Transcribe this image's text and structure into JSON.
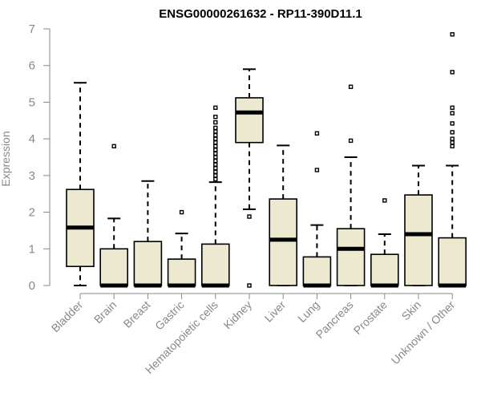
{
  "chart_data": {
    "type": "boxplot",
    "title": "ENSG00000261632 - RP11-390D11.1",
    "ylabel": "Expression",
    "xlabel": "",
    "ylim": [
      0,
      7
    ],
    "yticks": [
      "0",
      "1",
      "2",
      "3",
      "4",
      "5",
      "6",
      "7"
    ],
    "box_fill": "#ede8d0",
    "median_color": "#000000",
    "categories": [
      "Bladder",
      "Brain",
      "Breast",
      "Gastric",
      "Hematopoietic cells",
      "Kidney",
      "Liver",
      "Lung",
      "Pancreas",
      "Prostate",
      "Skin",
      "Unknown / Other"
    ],
    "boxes": [
      {
        "label": "Bladder",
        "min": 0.0,
        "q1": 0.52,
        "median": 1.58,
        "q3": 2.62,
        "max": 5.53,
        "outliers": []
      },
      {
        "label": "Brain",
        "min": 0.0,
        "q1": 0.0,
        "median": 0.0,
        "q3": 1.0,
        "max": 1.83,
        "outliers": [
          3.8
        ]
      },
      {
        "label": "Breast",
        "min": 0.0,
        "q1": 0.0,
        "median": 0.0,
        "q3": 1.2,
        "max": 2.85,
        "outliers": []
      },
      {
        "label": "Gastric",
        "min": 0.0,
        "q1": 0.0,
        "median": 0.0,
        "q3": 0.72,
        "max": 1.42,
        "outliers": [
          2.0
        ]
      },
      {
        "label": "Hematopoietic cells",
        "min": 0.0,
        "q1": 0.0,
        "median": 0.0,
        "q3": 1.13,
        "max": 2.82,
        "outliers": [
          2.9,
          3.0,
          3.1,
          3.2,
          3.3,
          3.4,
          3.5,
          3.6,
          3.7,
          3.8,
          3.9,
          4.0,
          4.1,
          4.2,
          4.3,
          4.45,
          4.6,
          4.85
        ]
      },
      {
        "label": "Kidney",
        "min": 2.08,
        "q1": 3.9,
        "median": 4.72,
        "q3": 5.12,
        "max": 5.9,
        "outliers": [
          1.88,
          0.0
        ]
      },
      {
        "label": "Liver",
        "min": 0.0,
        "q1": 0.0,
        "median": 1.25,
        "q3": 2.36,
        "max": 3.82,
        "outliers": []
      },
      {
        "label": "Lung",
        "min": 0.0,
        "q1": 0.0,
        "median": 0.0,
        "q3": 0.78,
        "max": 1.65,
        "outliers": [
          3.15,
          4.15
        ]
      },
      {
        "label": "Pancreas",
        "min": 0.0,
        "q1": 0.0,
        "median": 1.0,
        "q3": 1.55,
        "max": 3.5,
        "outliers": [
          3.95,
          5.42
        ]
      },
      {
        "label": "Prostate",
        "min": 0.0,
        "q1": 0.0,
        "median": 0.0,
        "q3": 0.85,
        "max": 1.4,
        "outliers": [
          2.32
        ]
      },
      {
        "label": "Skin",
        "min": 0.0,
        "q1": 0.0,
        "median": 1.4,
        "q3": 2.47,
        "max": 3.27,
        "outliers": []
      },
      {
        "label": "Unknown / Other",
        "min": 0.0,
        "q1": 0.0,
        "median": 0.0,
        "q3": 1.3,
        "max": 3.27,
        "outliers": [
          3.8,
          3.9,
          4.0,
          4.18,
          4.42,
          4.7,
          4.85,
          5.82,
          6.85
        ]
      }
    ]
  }
}
